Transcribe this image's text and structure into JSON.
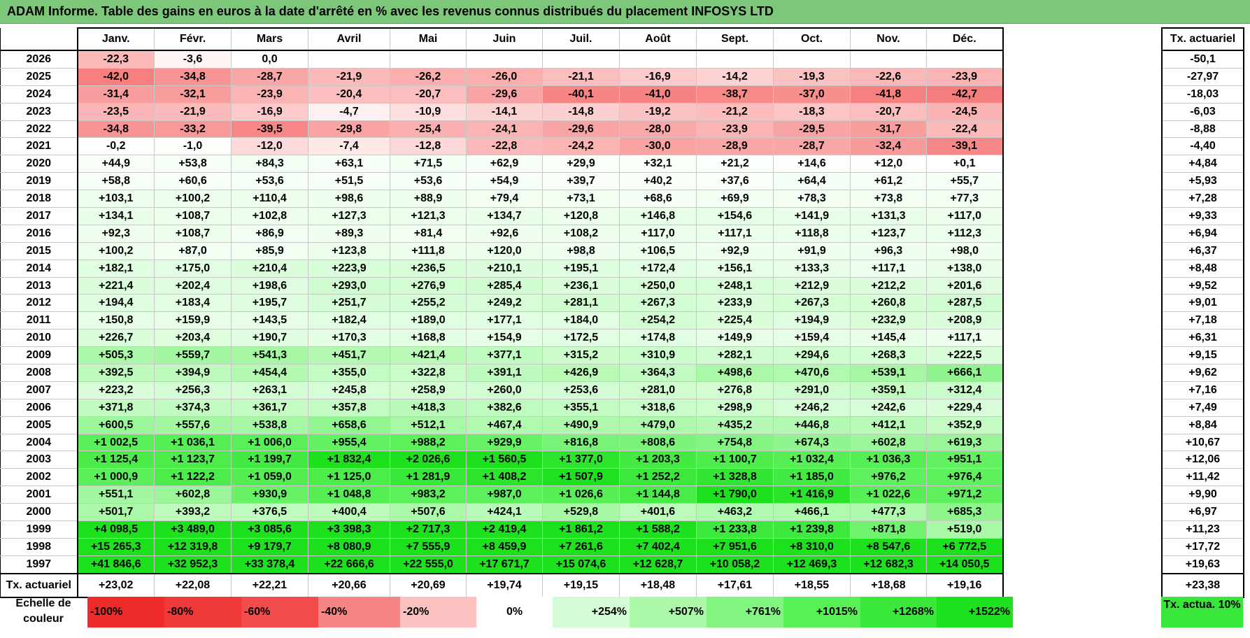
{
  "title": "ADAM Informe. Table des gains en euros à la date d'arrêté en % avec les revenus connus distribués du placement INFOSYS LTD",
  "chart_data": {
    "type": "heatmap",
    "title": "ADAM Informe. Table des gains en euros à la date d'arrêté en % avec les revenus connus distribués du placement INFOSYS LTD",
    "columns": [
      "Janv.",
      "Févr.",
      "Mars",
      "Avril",
      "Mai",
      "Juin",
      "Juil.",
      "Août",
      "Sept.",
      "Oct.",
      "Nov.",
      "Déc."
    ],
    "side_header": "Tx. actuariel",
    "rows": [
      {
        "year": "2026",
        "values": [
          "-22,3",
          "-3,6",
          "0,0",
          "",
          "",
          "",
          "",
          "",
          "",
          "",
          "",
          ""
        ],
        "act": "-50,1"
      },
      {
        "year": "2025",
        "values": [
          "-42,0",
          "-34,8",
          "-28,7",
          "-21,9",
          "-26,2",
          "-26,0",
          "-21,1",
          "-16,9",
          "-14,2",
          "-19,3",
          "-22,6",
          "-23,9"
        ],
        "act": "-27,97"
      },
      {
        "year": "2024",
        "values": [
          "-31,4",
          "-32,1",
          "-23,9",
          "-20,4",
          "-20,7",
          "-29,6",
          "-40,1",
          "-41,0",
          "-38,7",
          "-37,0",
          "-41,8",
          "-42,7"
        ],
        "act": "-18,03"
      },
      {
        "year": "2023",
        "values": [
          "-23,5",
          "-21,9",
          "-16,9",
          "-4,7",
          "-10,9",
          "-14,1",
          "-14,8",
          "-19,2",
          "-21,2",
          "-18,3",
          "-20,7",
          "-24,5"
        ],
        "act": "-6,03"
      },
      {
        "year": "2022",
        "values": [
          "-34,8",
          "-33,2",
          "-39,5",
          "-29,8",
          "-25,4",
          "-24,1",
          "-29,6",
          "-28,0",
          "-23,9",
          "-29,5",
          "-31,7",
          "-22,4"
        ],
        "act": "-8,88"
      },
      {
        "year": "2021",
        "values": [
          "-0,2",
          "-1,0",
          "-12,0",
          "-7,4",
          "-12,8",
          "-22,8",
          "-24,2",
          "-30,0",
          "-28,9",
          "-28,7",
          "-32,4",
          "-39,1"
        ],
        "act": "-4,40"
      },
      {
        "year": "2020",
        "values": [
          "+44,9",
          "+53,8",
          "+84,3",
          "+63,1",
          "+71,5",
          "+62,9",
          "+29,9",
          "+32,1",
          "+21,2",
          "+14,6",
          "+12,0",
          "+0,1"
        ],
        "act": "+4,84"
      },
      {
        "year": "2019",
        "values": [
          "+58,8",
          "+60,6",
          "+53,6",
          "+51,5",
          "+53,6",
          "+54,9",
          "+39,7",
          "+40,2",
          "+37,6",
          "+64,4",
          "+61,2",
          "+55,7"
        ],
        "act": "+5,93"
      },
      {
        "year": "2018",
        "values": [
          "+103,1",
          "+100,2",
          "+110,4",
          "+98,6",
          "+88,9",
          "+79,4",
          "+73,1",
          "+68,6",
          "+69,9",
          "+78,3",
          "+73,8",
          "+77,3"
        ],
        "act": "+7,28"
      },
      {
        "year": "2017",
        "values": [
          "+134,1",
          "+108,7",
          "+102,8",
          "+127,3",
          "+121,3",
          "+134,7",
          "+120,8",
          "+146,8",
          "+154,6",
          "+141,9",
          "+131,3",
          "+117,0"
        ],
        "act": "+9,33"
      },
      {
        "year": "2016",
        "values": [
          "+92,3",
          "+108,7",
          "+86,9",
          "+89,3",
          "+81,4",
          "+92,6",
          "+108,2",
          "+117,0",
          "+117,1",
          "+118,8",
          "+123,7",
          "+112,3"
        ],
        "act": "+6,94"
      },
      {
        "year": "2015",
        "values": [
          "+100,2",
          "+87,0",
          "+85,9",
          "+123,8",
          "+111,8",
          "+120,0",
          "+98,8",
          "+106,5",
          "+92,9",
          "+91,9",
          "+96,3",
          "+98,0"
        ],
        "act": "+6,37"
      },
      {
        "year": "2014",
        "values": [
          "+182,1",
          "+175,0",
          "+210,4",
          "+223,9",
          "+236,5",
          "+210,1",
          "+195,1",
          "+172,4",
          "+156,1",
          "+133,3",
          "+117,1",
          "+138,0"
        ],
        "act": "+8,48"
      },
      {
        "year": "2013",
        "values": [
          "+221,4",
          "+202,4",
          "+198,6",
          "+293,0",
          "+276,9",
          "+285,4",
          "+236,1",
          "+250,0",
          "+248,1",
          "+212,9",
          "+212,2",
          "+201,6"
        ],
        "act": "+9,52"
      },
      {
        "year": "2012",
        "values": [
          "+194,4",
          "+183,4",
          "+195,7",
          "+251,7",
          "+255,2",
          "+249,2",
          "+281,1",
          "+267,3",
          "+233,9",
          "+267,3",
          "+260,8",
          "+287,5"
        ],
        "act": "+9,01"
      },
      {
        "year": "2011",
        "values": [
          "+150,8",
          "+159,9",
          "+143,5",
          "+182,4",
          "+189,0",
          "+177,1",
          "+184,0",
          "+254,2",
          "+225,4",
          "+194,9",
          "+232,9",
          "+208,9"
        ],
        "act": "+7,18"
      },
      {
        "year": "2010",
        "values": [
          "+226,7",
          "+203,4",
          "+190,7",
          "+170,3",
          "+168,8",
          "+154,9",
          "+172,5",
          "+174,8",
          "+149,9",
          "+159,4",
          "+145,4",
          "+117,1"
        ],
        "act": "+6,31"
      },
      {
        "year": "2009",
        "values": [
          "+505,3",
          "+559,7",
          "+541,3",
          "+451,7",
          "+421,4",
          "+377,1",
          "+315,2",
          "+310,9",
          "+282,1",
          "+294,6",
          "+268,3",
          "+222,5"
        ],
        "act": "+9,15"
      },
      {
        "year": "2008",
        "values": [
          "+392,5",
          "+394,9",
          "+454,4",
          "+355,0",
          "+322,8",
          "+391,1",
          "+426,9",
          "+364,3",
          "+498,6",
          "+470,6",
          "+539,1",
          "+666,1"
        ],
        "act": "+9,62"
      },
      {
        "year": "2007",
        "values": [
          "+223,2",
          "+256,3",
          "+263,1",
          "+245,8",
          "+258,9",
          "+260,0",
          "+253,6",
          "+281,0",
          "+276,8",
          "+291,0",
          "+359,1",
          "+312,4"
        ],
        "act": "+7,16"
      },
      {
        "year": "2006",
        "values": [
          "+371,8",
          "+374,3",
          "+361,7",
          "+357,8",
          "+418,3",
          "+382,6",
          "+355,1",
          "+318,6",
          "+298,9",
          "+246,2",
          "+242,6",
          "+229,4"
        ],
        "act": "+7,49"
      },
      {
        "year": "2005",
        "values": [
          "+600,5",
          "+557,6",
          "+538,8",
          "+658,6",
          "+512,1",
          "+467,4",
          "+490,9",
          "+479,0",
          "+435,2",
          "+446,8",
          "+412,1",
          "+352,9"
        ],
        "act": "+8,84"
      },
      {
        "year": "2004",
        "values": [
          "+1 002,5",
          "+1 036,1",
          "+1 006,0",
          "+955,4",
          "+988,2",
          "+929,9",
          "+816,8",
          "+808,6",
          "+754,8",
          "+674,3",
          "+602,8",
          "+619,3"
        ],
        "act": "+10,67"
      },
      {
        "year": "2003",
        "values": [
          "+1 125,4",
          "+1 123,7",
          "+1 199,7",
          "+1 832,4",
          "+2 026,6",
          "+1 560,5",
          "+1 377,0",
          "+1 203,3",
          "+1 100,7",
          "+1 032,4",
          "+1 036,3",
          "+951,1"
        ],
        "act": "+12,06"
      },
      {
        "year": "2002",
        "values": [
          "+1 000,9",
          "+1 122,2",
          "+1 059,0",
          "+1 125,0",
          "+1 281,9",
          "+1 408,2",
          "+1 507,9",
          "+1 252,2",
          "+1 328,8",
          "+1 185,0",
          "+976,2",
          "+976,4"
        ],
        "act": "+11,42"
      },
      {
        "year": "2001",
        "values": [
          "+551,1",
          "+602,8",
          "+930,9",
          "+1 048,8",
          "+983,2",
          "+987,0",
          "+1 026,6",
          "+1 144,8",
          "+1 790,0",
          "+1 416,9",
          "+1 022,6",
          "+971,2"
        ],
        "act": "+9,90"
      },
      {
        "year": "2000",
        "values": [
          "+501,7",
          "+393,2",
          "+376,5",
          "+400,4",
          "+507,6",
          "+424,1",
          "+529,8",
          "+401,6",
          "+463,2",
          "+466,1",
          "+477,3",
          "+685,3"
        ],
        "act": "+6,97"
      },
      {
        "year": "1999",
        "values": [
          "+4 098,5",
          "+3 489,0",
          "+3 085,6",
          "+3 398,3",
          "+2 717,3",
          "+2 419,4",
          "+1 861,2",
          "+1 588,2",
          "+1 233,8",
          "+1 239,8",
          "+871,8",
          "+519,0"
        ],
        "act": "+11,23"
      },
      {
        "year": "1998",
        "values": [
          "+15 265,3",
          "+12 319,8",
          "+9 179,7",
          "+8 080,9",
          "+7 555,9",
          "+8 459,9",
          "+7 261,6",
          "+7 402,4",
          "+7 951,6",
          "+8 310,0",
          "+8 547,6",
          "+6 772,5"
        ],
        "act": "+17,72"
      },
      {
        "year": "1997",
        "values": [
          "+41 846,6",
          "+32 952,3",
          "+33 378,4",
          "+22 666,6",
          "+22 555,0",
          "+17 671,7",
          "+15 074,6",
          "+12 628,7",
          "+10 058,2",
          "+12 469,3",
          "+12 682,3",
          "+14 050,5"
        ],
        "act": "+19,63"
      }
    ],
    "actuarial_row": {
      "label": "Tx. actuariel",
      "values": [
        "+23,02",
        "+22,08",
        "+22,21",
        "+20,66",
        "+20,69",
        "+19,74",
        "+19,15",
        "+18,48",
        "+17,61",
        "+18,55",
        "+18,68",
        "+19,16"
      ],
      "act": "+23,38"
    },
    "color_scale": {
      "label": "Echelle de couleur",
      "steps": [
        {
          "label": "-100%",
          "value": -100,
          "color": "#ee2a2a"
        },
        {
          "label": "-80%",
          "value": -80,
          "color": "#f03a3a"
        },
        {
          "label": "-60%",
          "value": -60,
          "color": "#f24c4c"
        },
        {
          "label": "-40%",
          "value": -40,
          "color": "#f78585"
        },
        {
          "label": "-20%",
          "value": -20,
          "color": "#fbc0c0"
        },
        {
          "label": "0%",
          "value": 0,
          "color": "#ffffff"
        },
        {
          "label": "+254%",
          "value": 254,
          "color": "#d5fdd5"
        },
        {
          "label": "+507%",
          "value": 507,
          "color": "#aaf8a8"
        },
        {
          "label": "+761%",
          "value": 761,
          "color": "#82f480"
        },
        {
          "label": "+1015%",
          "value": 1015,
          "color": "#59ef57"
        },
        {
          "label": "+1268%",
          "value": 1268,
          "color": "#3ae83a"
        },
        {
          "label": "+1522%",
          "value": 1522,
          "color": "#1ee11e"
        }
      ],
      "act_label": "Tx. actua. 10%",
      "act_color": "#39e63a"
    }
  }
}
